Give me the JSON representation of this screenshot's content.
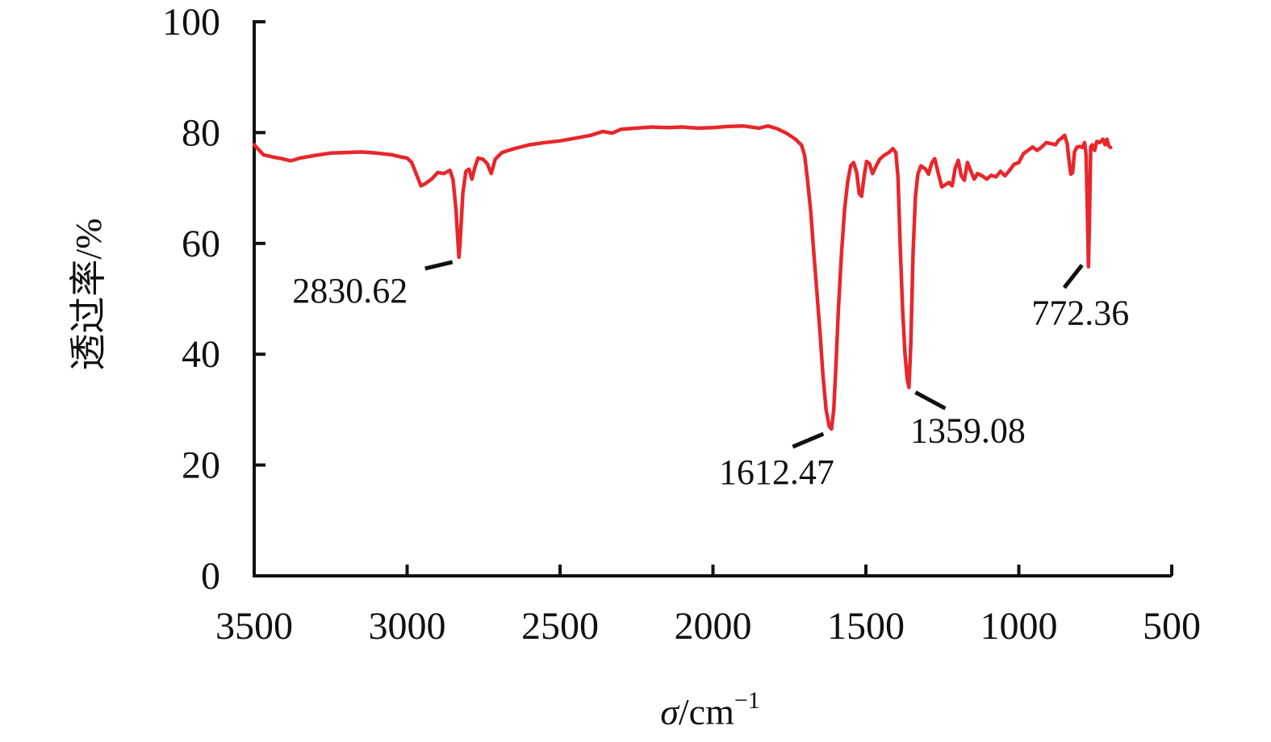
{
  "chart_data": {
    "type": "line",
    "title": "",
    "xlabel_var": "σ",
    "xlabel_unit": "/cm",
    "xlabel_sup": "−1",
    "ylabel": "透过率/%",
    "xlim": [
      3500,
      500
    ],
    "ylim": [
      0,
      100
    ],
    "x_reversed": true,
    "x_ticks": [
      3500,
      3000,
      2500,
      2000,
      1500,
      1000,
      500
    ],
    "y_ticks": [
      0,
      20,
      40,
      60,
      80,
      100
    ],
    "x_tick_labels": [
      "3500",
      "3000",
      "2500",
      "2000",
      "1500",
      "1000",
      "500"
    ],
    "y_tick_labels": [
      "0",
      "20",
      "40",
      "60",
      "80",
      "100"
    ],
    "grid": false,
    "legend": "none",
    "line_color": "#e8262b",
    "series": [
      {
        "points": [
          [
            3500,
            77.8
          ],
          [
            3470,
            76.0
          ],
          [
            3440,
            75.6
          ],
          [
            3410,
            75.3
          ],
          [
            3380,
            74.9
          ],
          [
            3350,
            75.4
          ],
          [
            3300,
            75.9
          ],
          [
            3250,
            76.3
          ],
          [
            3200,
            76.4
          ],
          [
            3150,
            76.5
          ],
          [
            3100,
            76.3
          ],
          [
            3050,
            76.0
          ],
          [
            3020,
            75.6
          ],
          [
            3000,
            75.4
          ],
          [
            2985,
            74.6
          ],
          [
            2970,
            72.5
          ],
          [
            2955,
            70.4
          ],
          [
            2940,
            70.8
          ],
          [
            2920,
            71.6
          ],
          [
            2900,
            72.8
          ],
          [
            2880,
            72.6
          ],
          [
            2860,
            73.2
          ],
          [
            2850,
            71.5
          ],
          [
            2840,
            66.0
          ],
          [
            2833,
            59.5
          ],
          [
            2830.62,
            57.5
          ],
          [
            2827,
            60.0
          ],
          [
            2818,
            69.0
          ],
          [
            2808,
            73.0
          ],
          [
            2798,
            73.4
          ],
          [
            2788,
            71.6
          ],
          [
            2778,
            73.8
          ],
          [
            2768,
            75.4
          ],
          [
            2752,
            75.2
          ],
          [
            2738,
            74.4
          ],
          [
            2725,
            72.6
          ],
          [
            2712,
            75.2
          ],
          [
            2690,
            76.4
          ],
          [
            2650,
            77.1
          ],
          [
            2600,
            77.8
          ],
          [
            2550,
            78.2
          ],
          [
            2500,
            78.5
          ],
          [
            2450,
            79.0
          ],
          [
            2400,
            79.5
          ],
          [
            2360,
            80.2
          ],
          [
            2330,
            79.9
          ],
          [
            2300,
            80.6
          ],
          [
            2250,
            80.8
          ],
          [
            2200,
            81.0
          ],
          [
            2150,
            80.9
          ],
          [
            2100,
            81.0
          ],
          [
            2050,
            80.8
          ],
          [
            2000,
            80.9
          ],
          [
            1950,
            81.1
          ],
          [
            1900,
            81.2
          ],
          [
            1850,
            80.8
          ],
          [
            1820,
            81.2
          ],
          [
            1790,
            80.7
          ],
          [
            1760,
            79.9
          ],
          [
            1730,
            78.8
          ],
          [
            1710,
            77.7
          ],
          [
            1700,
            75.8
          ],
          [
            1690,
            71.0
          ],
          [
            1680,
            65.5
          ],
          [
            1670,
            58.0
          ],
          [
            1660,
            51.0
          ],
          [
            1650,
            44.0
          ],
          [
            1640,
            36.0
          ],
          [
            1630,
            30.0
          ],
          [
            1620,
            27.0
          ],
          [
            1612.47,
            26.5
          ],
          [
            1605,
            30.0
          ],
          [
            1598,
            38.0
          ],
          [
            1590,
            48.0
          ],
          [
            1580,
            58.0
          ],
          [
            1570,
            66.0
          ],
          [
            1560,
            71.0
          ],
          [
            1550,
            74.0
          ],
          [
            1540,
            74.6
          ],
          [
            1530,
            72.8
          ],
          [
            1522,
            69.0
          ],
          [
            1514,
            68.5
          ],
          [
            1506,
            72.0
          ],
          [
            1498,
            74.8
          ],
          [
            1488,
            74.4
          ],
          [
            1478,
            72.6
          ],
          [
            1468,
            73.8
          ],
          [
            1455,
            75.2
          ],
          [
            1440,
            75.9
          ],
          [
            1425,
            76.4
          ],
          [
            1412,
            77.1
          ],
          [
            1402,
            76.4
          ],
          [
            1395,
            72.0
          ],
          [
            1388,
            60.0
          ],
          [
            1380,
            48.0
          ],
          [
            1372,
            40.0
          ],
          [
            1365,
            35.5
          ],
          [
            1359.08,
            34.0
          ],
          [
            1353,
            42.0
          ],
          [
            1346,
            58.0
          ],
          [
            1338,
            68.5
          ],
          [
            1330,
            72.5
          ],
          [
            1320,
            74.0
          ],
          [
            1305,
            73.4
          ],
          [
            1295,
            72.5
          ],
          [
            1285,
            74.5
          ],
          [
            1275,
            75.3
          ],
          [
            1265,
            73.0
          ],
          [
            1252,
            70.2
          ],
          [
            1240,
            70.6
          ],
          [
            1228,
            71.0
          ],
          [
            1218,
            70.4
          ],
          [
            1208,
            73.6
          ],
          [
            1198,
            75.0
          ],
          [
            1188,
            72.2
          ],
          [
            1178,
            71.4
          ],
          [
            1168,
            74.6
          ],
          [
            1158,
            73.2
          ],
          [
            1146,
            71.6
          ],
          [
            1135,
            72.6
          ],
          [
            1120,
            72.2
          ],
          [
            1105,
            71.6
          ],
          [
            1090,
            72.3
          ],
          [
            1075,
            72.0
          ],
          [
            1060,
            73.0
          ],
          [
            1045,
            72.2
          ],
          [
            1030,
            73.2
          ],
          [
            1015,
            74.3
          ],
          [
            1000,
            74.6
          ],
          [
            985,
            76.2
          ],
          [
            970,
            76.8
          ],
          [
            955,
            77.4
          ],
          [
            940,
            76.8
          ],
          [
            925,
            77.4
          ],
          [
            910,
            78.2
          ],
          [
            895,
            78.0
          ],
          [
            880,
            77.8
          ],
          [
            870,
            78.6
          ],
          [
            860,
            79.0
          ],
          [
            850,
            79.5
          ],
          [
            842,
            78.0
          ],
          [
            836,
            75.0
          ],
          [
            830,
            72.5
          ],
          [
            824,
            72.8
          ],
          [
            818,
            76.5
          ],
          [
            810,
            77.4
          ],
          [
            800,
            77.5
          ],
          [
            792,
            77.3
          ],
          [
            785,
            78.2
          ],
          [
            780,
            76.0
          ],
          [
            776,
            66.0
          ],
          [
            772.36,
            55.8
          ],
          [
            769,
            64.0
          ],
          [
            765,
            77.4
          ],
          [
            760,
            77.8
          ],
          [
            752,
            76.8
          ],
          [
            745,
            78.4
          ],
          [
            735,
            78.2
          ],
          [
            725,
            78.8
          ],
          [
            718,
            77.8
          ],
          [
            712,
            78.8
          ],
          [
            706,
            77.6
          ],
          [
            700,
            77.3
          ]
        ]
      }
    ],
    "annotations": [
      {
        "text": "2830.62",
        "x": 2830.62,
        "y": 57.5
      },
      {
        "text": "1612.47",
        "x": 1612.47,
        "y": 26.5
      },
      {
        "text": "1359.08",
        "x": 1359.08,
        "y": 34.0
      },
      {
        "text": "772.36",
        "x": 772.36,
        "y": 55.8
      }
    ]
  }
}
